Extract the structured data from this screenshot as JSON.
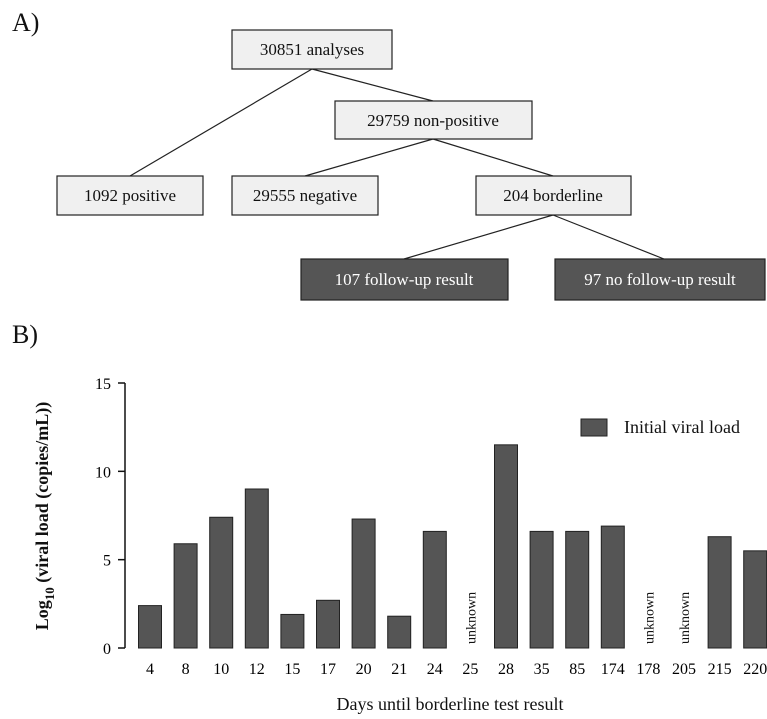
{
  "panel_a": {
    "label": "A)",
    "nodes": {
      "analyses": "30851 analyses",
      "non_positive": "29759 non-positive",
      "positive": "1092 positive",
      "negative": "29555 negative",
      "borderline": "204 borderline",
      "follow_up": "107 follow-up result",
      "no_follow_up": "97 no follow-up result"
    },
    "colors": {
      "light_box": "#f0f0f0",
      "dark_box": "#555555"
    }
  },
  "panel_b": {
    "label": "B)"
  },
  "chart_data": {
    "type": "bar",
    "categories": [
      "4",
      "8",
      "10",
      "12",
      "15",
      "17",
      "20",
      "21",
      "24",
      "25",
      "28",
      "35",
      "85",
      "174",
      "178",
      "205",
      "215",
      "220"
    ],
    "series": [
      {
        "name": "Initial viral load",
        "values": [
          2.4,
          5.9,
          7.4,
          9.0,
          1.9,
          2.7,
          7.3,
          1.8,
          6.6,
          null,
          11.5,
          6.6,
          6.6,
          6.9,
          null,
          null,
          6.3,
          5.5
        ],
        "color": "#555555"
      }
    ],
    "missing_label": "unknown",
    "xlabel": "Days until borderline test result",
    "ylabel_parts": {
      "prefix": "Log",
      "subscript": "10",
      "suffix": " (viral load (copies/mL))"
    },
    "ylim": [
      0,
      15
    ],
    "yticks": [
      "0",
      "5",
      "10",
      "15"
    ],
    "grid": false,
    "legend_position": "top-right"
  }
}
